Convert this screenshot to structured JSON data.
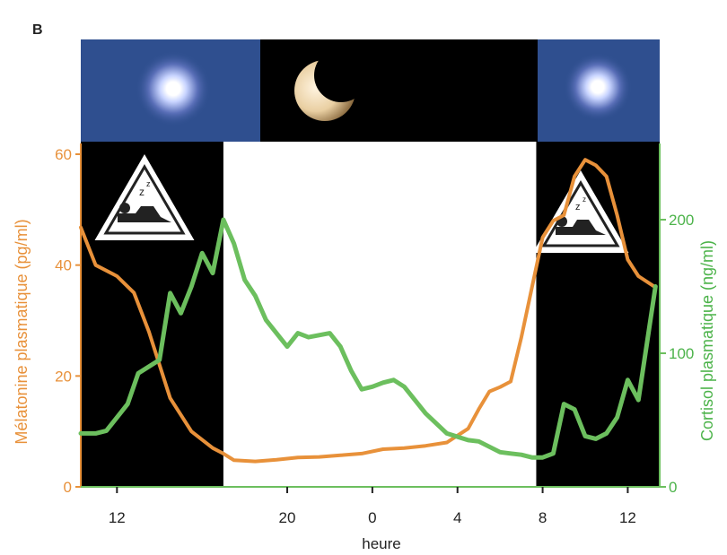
{
  "panel_label": "B",
  "chart_data": {
    "type": "line",
    "xlabel": "heure",
    "ylabel_left": "Mélatonine plasmatique (pg/ml)",
    "ylabel_right": "Cortisol plasmatique (ng/ml)",
    "colors": {
      "melatonin": "#e8913a",
      "cortisol": "#6cbf5e",
      "night_band": "#000000",
      "day_band": "#ffffff",
      "sky": "#2f4f8f"
    },
    "y_left": {
      "range": [
        0,
        63
      ],
      "ticks": [
        "0",
        "20",
        "40",
        "60"
      ],
      "tick_values": [
        0,
        20,
        40,
        60
      ]
    },
    "y_right": {
      "range": [
        0,
        258
      ],
      "ticks": [
        "0",
        "100",
        "200"
      ],
      "tick_values": [
        0,
        100,
        200
      ]
    },
    "x_ticks": [
      {
        "label": "12",
        "h": 12
      },
      {
        "label": "20",
        "h": 20
      },
      {
        "label": "0",
        "h": 24
      },
      {
        "label": "4",
        "h": 28
      },
      {
        "label": "8",
        "h": 32
      },
      {
        "label": "12",
        "h": 36
      }
    ],
    "x_range": [
      10.3,
      37.5
    ],
    "sleep_bands_h": [
      [
        10.3,
        17.0
      ],
      [
        31.7,
        37.5
      ]
    ],
    "icons": {
      "top_sun_left": "sun-icon",
      "top_moon": "moon-icon",
      "top_sun_right": "sun-icon",
      "sleep_left": "sleep-sign-icon",
      "sleep_right": "sleep-sign-icon"
    },
    "series": [
      {
        "key": "melatonin",
        "axis": "left",
        "x": [
          10.3,
          11.0,
          12.0,
          12.8,
          13.5,
          14.5,
          15.5,
          16.5,
          17.0,
          17.5,
          18.5,
          19.5,
          20.5,
          21.5,
          22.5,
          23.5,
          24.5,
          25.5,
          26.5,
          27.5,
          28.5,
          29.0,
          29.5,
          30.0,
          30.5,
          31.0,
          31.5,
          32.0,
          32.5,
          33.0,
          33.5,
          34.0,
          34.5,
          35.0,
          35.5,
          36.0,
          36.5,
          37.3
        ],
        "y": [
          46.8,
          40,
          38,
          35,
          28,
          16,
          10,
          7,
          6,
          4.8,
          4.6,
          4.9,
          5.3,
          5.4,
          5.7,
          6.0,
          6.8,
          7.0,
          7.4,
          8.0,
          10.5,
          14,
          17.2,
          18,
          19,
          27,
          36,
          45,
          48,
          49,
          56,
          59,
          58,
          56,
          49,
          41,
          38,
          36
        ]
      },
      {
        "key": "cortisol",
        "axis": "right",
        "x": [
          10.3,
          11.0,
          11.5,
          12.5,
          13.0,
          14.0,
          14.5,
          15.0,
          15.5,
          16.0,
          16.5,
          17.0,
          17.5,
          18.0,
          18.5,
          19.0,
          20.0,
          20.5,
          21.0,
          22.0,
          22.5,
          23.0,
          23.5,
          24.0,
          24.5,
          25.0,
          25.5,
          26.5,
          27.5,
          28.5,
          29.0,
          30.0,
          30.5,
          31.0,
          31.5,
          32.0,
          32.5,
          33.0,
          33.5,
          34.0,
          34.5,
          35.0,
          35.5,
          36.0,
          36.5,
          37.3
        ],
        "y": [
          40,
          40,
          42,
          62,
          85,
          95,
          145,
          130,
          150,
          175,
          160,
          200,
          182,
          155,
          143,
          125,
          105,
          115,
          112,
          115,
          105,
          87,
          73,
          75,
          78,
          80,
          75,
          55,
          40,
          35,
          34,
          26,
          25,
          24,
          22,
          22,
          25,
          62,
          58,
          38,
          36,
          40,
          52,
          80,
          65,
          150
        ]
      }
    ]
  }
}
